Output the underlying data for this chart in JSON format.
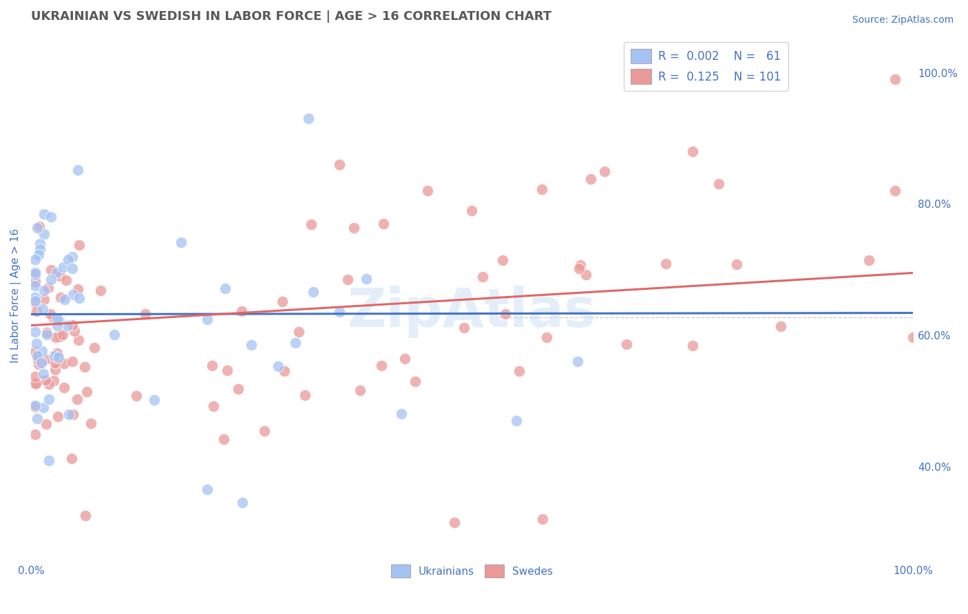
{
  "title": "UKRAINIAN VS SWEDISH IN LABOR FORCE | AGE > 16 CORRELATION CHART",
  "source_text": "Source: ZipAtlas.com",
  "ylabel": "In Labor Force | Age > 16",
  "xlim": [
    0.0,
    1.0
  ],
  "ylim": [
    0.26,
    1.06
  ],
  "y_tick_vals_right": [
    0.4,
    0.6,
    0.8,
    1.0
  ],
  "y_tick_labels_right": [
    "40.0%",
    "60.0%",
    "80.0%",
    "100.0%"
  ],
  "watermark": "ZipAtlas",
  "blue_color": "#a4c2f4",
  "pink_color": "#ea9999",
  "line_blue": "#4472c4",
  "line_pink": "#e06666",
  "label_color": "#4472c4",
  "title_color": "#595959",
  "background_color": "#ffffff",
  "grid_color": "#cccccc",
  "blue_line_y_start": 0.632,
  "blue_line_y_end": 0.634,
  "pink_line_y_start": 0.615,
  "pink_line_y_end": 0.695
}
